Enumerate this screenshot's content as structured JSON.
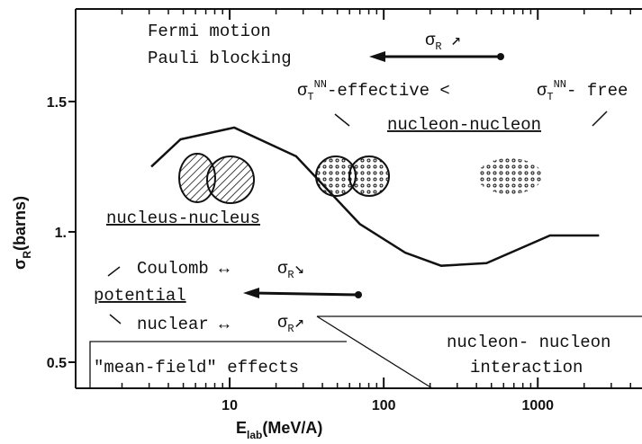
{
  "chart_data": {
    "type": "line",
    "x_label": {
      "main": "E",
      "sub": "lab",
      "unit": "(MeV/A)"
    },
    "y_label": {
      "main": "σ",
      "sub": "R",
      "unit": "(barns)"
    },
    "x_log": true,
    "xlim": [
      1,
      4500
    ],
    "ylim": [
      0.4,
      1.855
    ],
    "xticks": [
      10,
      100,
      1000
    ],
    "xminorticks": [
      2,
      3,
      4,
      5,
      6,
      7,
      8,
      9,
      20,
      30,
      40,
      50,
      60,
      70,
      80,
      90,
      200,
      300,
      400,
      500,
      600,
      700,
      800,
      900,
      2000,
      3000,
      4000
    ],
    "yticks": [
      0.5,
      {
        "value": 1,
        "label": "1."
      },
      1.5
    ],
    "x": [
      3.1,
      4.8,
      10.7,
      27,
      70,
      138,
      236,
      465,
      795,
      1200,
      2500
    ],
    "series": [
      {
        "color": "#111",
        "values": [
          1.25,
          1.355,
          1.4,
          1.29,
          1.03,
          0.92,
          0.87,
          0.88,
          0.94,
          0.986,
          0.986
        ]
      }
    ],
    "annotations": {
      "fermi_motion": "Fermi motion",
      "pauli_blocking": "Pauli blocking",
      "sigma_r_1": {
        "symbol": "σ",
        "sub": "R",
        "arrow": "↗"
      },
      "nn_effective": {
        "symbol": "σ",
        "sub": "T",
        "sup": "NN",
        "text": "-effective <"
      },
      "nn_free": {
        "symbol": "σ",
        "sub": "T",
        "sup": "NN",
        "text": "- free"
      },
      "nucleon_nucleon": "nucleon-nucleon",
      "nucleus_nucleus": "nucleus-nucleus",
      "coulomb": "Coulomb ↔",
      "sigma_r_2": {
        "symbol": "σ",
        "sub": "R",
        "arrow": "↘"
      },
      "potential": "potential",
      "nuclear": "nuclear ↔",
      "sigma_r_3": {
        "symbol": "σ",
        "sub": "R",
        "arrow": "↗"
      },
      "mean_field": "\"mean-field\" effects",
      "nn_interaction_1": "nucleon- nucleon",
      "nn_interaction_2": "interaction"
    }
  }
}
